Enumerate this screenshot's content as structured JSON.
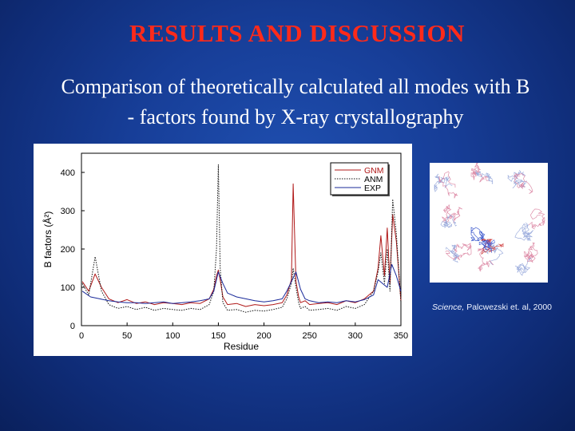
{
  "slide": {
    "title": "RESULTS AND DISCUSSION",
    "subtitle_line1": "Comparison of theoretically calculated all modes with B",
    "subtitle_line2": "- factors found by X-ray crystallography",
    "citation_journal": "Science,",
    "citation_rest": " Palcwezski et. al,  2000",
    "colors": {
      "title": "#ff2a1a",
      "text": "#ffffff",
      "background": "#173e98"
    }
  },
  "chart_data": {
    "type": "line",
    "xlabel": "Residue",
    "ylabel": "B factors (Å²)",
    "xlim": [
      0,
      350
    ],
    "ylim": [
      0,
      450
    ],
    "xticks": [
      0,
      50,
      100,
      150,
      200,
      250,
      300,
      350
    ],
    "yticks": [
      0,
      100,
      200,
      300,
      400
    ],
    "legend_position": "top-right",
    "series": [
      {
        "name": "GNM",
        "color": "#b01818",
        "style": "solid",
        "x": [
          1,
          8,
          15,
          22,
          30,
          40,
          50,
          60,
          70,
          80,
          90,
          100,
          110,
          120,
          130,
          140,
          145,
          148,
          150,
          152,
          155,
          160,
          170,
          180,
          190,
          200,
          210,
          220,
          225,
          230,
          232,
          235,
          238,
          240,
          245,
          250,
          260,
          270,
          280,
          290,
          300,
          310,
          320,
          325,
          328,
          332,
          335,
          338,
          341,
          345,
          350
        ],
        "y": [
          115,
          90,
          135,
          100,
          70,
          60,
          68,
          58,
          62,
          55,
          60,
          58,
          55,
          60,
          58,
          70,
          95,
          130,
          145,
          120,
          75,
          55,
          58,
          50,
          55,
          52,
          55,
          60,
          80,
          120,
          370,
          115,
          75,
          60,
          65,
          55,
          58,
          60,
          55,
          65,
          60,
          70,
          90,
          150,
          235,
          130,
          255,
          110,
          290,
          220,
          65
        ]
      },
      {
        "name": "ANM",
        "color": "#111111",
        "style": "dotted",
        "x": [
          1,
          8,
          15,
          22,
          30,
          40,
          50,
          60,
          70,
          80,
          90,
          100,
          110,
          120,
          130,
          140,
          145,
          148,
          150,
          152,
          155,
          160,
          170,
          180,
          190,
          200,
          210,
          220,
          225,
          230,
          232,
          235,
          238,
          240,
          245,
          250,
          260,
          270,
          280,
          290,
          300,
          310,
          320,
          325,
          328,
          332,
          335,
          338,
          341,
          345,
          350
        ],
        "y": [
          110,
          80,
          180,
          90,
          55,
          45,
          50,
          42,
          48,
          40,
          45,
          42,
          40,
          45,
          42,
          55,
          90,
          200,
          420,
          150,
          60,
          40,
          42,
          35,
          40,
          38,
          42,
          48,
          70,
          110,
          150,
          100,
          60,
          45,
          50,
          40,
          42,
          45,
          40,
          50,
          45,
          55,
          90,
          140,
          190,
          110,
          200,
          90,
          330,
          240,
          60
        ]
      },
      {
        "name": "EXP",
        "color": "#1a2a9a",
        "style": "solid",
        "x": [
          1,
          10,
          20,
          30,
          40,
          50,
          60,
          70,
          80,
          90,
          100,
          110,
          120,
          130,
          140,
          145,
          150,
          155,
          160,
          170,
          180,
          190,
          200,
          210,
          220,
          225,
          230,
          235,
          240,
          245,
          250,
          260,
          270,
          280,
          290,
          300,
          310,
          320,
          325,
          330,
          335,
          340,
          345,
          350
        ],
        "y": [
          90,
          75,
          70,
          65,
          62,
          60,
          60,
          58,
          60,
          62,
          58,
          60,
          62,
          65,
          70,
          90,
          140,
          110,
          85,
          75,
          70,
          65,
          62,
          65,
          70,
          90,
          115,
          140,
          95,
          70,
          65,
          60,
          62,
          60,
          65,
          62,
          68,
          80,
          120,
          110,
          100,
          160,
          130,
          90
        ]
      }
    ]
  }
}
